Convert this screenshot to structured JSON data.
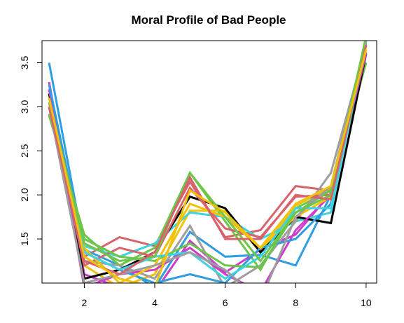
{
  "chart_data": {
    "type": "line",
    "title": "Moral Profile of Bad People",
    "xlabel": "",
    "ylabel": "",
    "xlim": [
      0.8,
      10.3
    ],
    "ylim": [
      1.0,
      3.75
    ],
    "x_ticks": [
      2,
      4,
      6,
      8,
      10
    ],
    "y_ticks": [
      1.5,
      2.0,
      2.5,
      3.0,
      3.5
    ],
    "x_tick_labels": [
      "2",
      "4",
      "6",
      "8",
      "10"
    ],
    "y_tick_labels": [
      "1.5",
      "2.0",
      "2.5",
      "3.0",
      "3.5"
    ],
    "x": [
      1,
      2,
      3,
      4,
      5,
      6,
      7,
      8,
      9,
      10
    ],
    "series": [
      {
        "color": "#d9636b",
        "values": [
          3.0,
          1.3,
          1.52,
          1.42,
          2.15,
          1.52,
          1.6,
          2.1,
          2.05,
          3.7
        ]
      },
      {
        "color": "#cc3dcc",
        "values": [
          3.28,
          1.1,
          0.95,
          0.9,
          1.48,
          1.12,
          1.38,
          1.55,
          2.02,
          3.62
        ]
      },
      {
        "color": "#2e9ee0",
        "values": [
          3.5,
          1.38,
          1.2,
          0.95,
          1.58,
          1.3,
          1.32,
          1.2,
          2.0,
          3.75
        ]
      },
      {
        "color": "#6cc64a",
        "values": [
          2.9,
          1.55,
          1.2,
          1.4,
          2.25,
          1.7,
          1.15,
          1.85,
          2.05,
          3.5
        ]
      },
      {
        "color": "#f0c20a",
        "values": [
          3.1,
          1.2,
          0.95,
          1.1,
          1.82,
          1.82,
          1.35,
          1.88,
          2.08,
          3.65
        ]
      },
      {
        "color": "#3dd3e0",
        "values": [
          3.0,
          1.42,
          1.3,
          1.45,
          1.8,
          1.75,
          1.5,
          1.7,
          1.8,
          3.75
        ]
      },
      {
        "color": "#9e9e9e",
        "values": [
          3.05,
          1.25,
          1.2,
          1.05,
          1.65,
          0.95,
          1.2,
          1.7,
          2.25,
          3.7
        ]
      },
      {
        "color": "#000000",
        "values": [
          3.15,
          1.05,
          1.15,
          1.35,
          1.98,
          1.85,
          1.35,
          1.75,
          1.68,
          3.6
        ]
      },
      {
        "color": "#d9636b",
        "values": [
          3.0,
          1.2,
          1.4,
          1.3,
          2.08,
          1.62,
          1.52,
          1.98,
          2.0,
          3.7
        ]
      },
      {
        "color": "#cc3dcc",
        "values": [
          3.2,
          0.95,
          1.1,
          1.15,
          1.4,
          1.1,
          0.9,
          1.6,
          2.0,
          3.6
        ]
      },
      {
        "color": "#2e9ee0",
        "values": [
          3.25,
          1.35,
          1.15,
          1.0,
          1.1,
          1.0,
          1.4,
          1.5,
          1.9,
          3.72
        ]
      },
      {
        "color": "#6cc64a",
        "values": [
          2.92,
          1.5,
          1.3,
          1.25,
          1.45,
          1.2,
          1.18,
          1.8,
          2.05,
          3.65
        ]
      },
      {
        "color": "#f0c20a",
        "values": [
          3.05,
          1.4,
          1.0,
          1.2,
          1.9,
          1.75,
          1.4,
          1.75,
          1.98,
          3.7
        ]
      },
      {
        "color": "#3dd3e0",
        "values": [
          3.0,
          1.35,
          1.15,
          1.3,
          1.35,
          1.05,
          1.3,
          1.85,
          1.85,
          3.72
        ]
      },
      {
        "color": "#9e9e9e",
        "values": [
          3.0,
          1.0,
          1.1,
          1.2,
          1.35,
          1.15,
          0.8,
          1.75,
          2.1,
          3.75
        ]
      },
      {
        "color": "#6cc64a",
        "values": [
          3.05,
          1.45,
          1.25,
          1.3,
          2.25,
          1.75,
          1.25,
          1.8,
          2.0,
          3.8
        ]
      },
      {
        "color": "#d9636b",
        "values": [
          3.0,
          1.25,
          1.1,
          1.35,
          2.2,
          1.5,
          1.5,
          2.0,
          1.95,
          3.7
        ]
      },
      {
        "color": "#f0c20a",
        "values": [
          3.1,
          1.3,
          1.05,
          0.95,
          2.05,
          1.8,
          1.4,
          1.9,
          2.1,
          3.65
        ]
      }
    ]
  }
}
